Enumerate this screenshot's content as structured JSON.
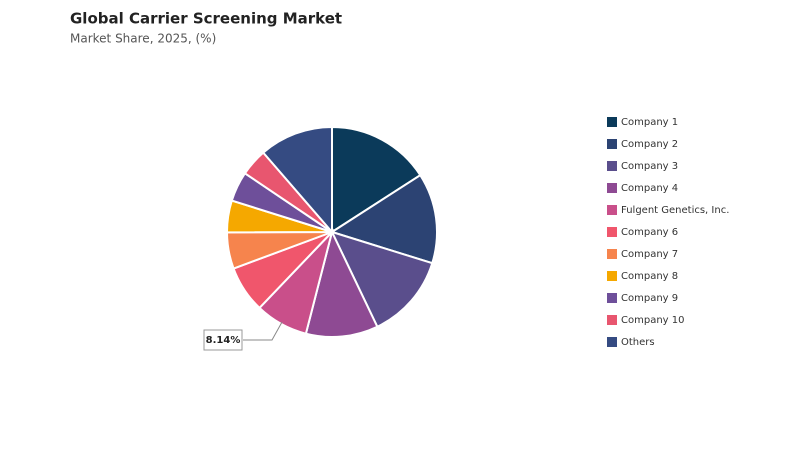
{
  "chart_data": {
    "type": "pie",
    "title": "Global Carrier Screening Market",
    "subtitle": "Market Share, 2025, (%)",
    "categories": [
      "Company 1",
      "Company 2",
      "Company 3",
      "Company 4",
      "Fulgent Genetics, Inc.",
      "Company 6",
      "Company 7",
      "Company 8",
      "Company 9",
      "Company 10",
      "Others"
    ],
    "values": [
      15.9,
      13.9,
      13.1,
      11.1,
      8.14,
      7.2,
      5.6,
      4.9,
      4.6,
      4.2,
      11.36
    ],
    "value_labels": [
      null,
      null,
      null,
      null,
      "8.14%",
      null,
      null,
      null,
      null,
      null,
      null
    ],
    "colors": [
      "#0b3a5a",
      "#2c4373",
      "#5a4e8c",
      "#8e4a93",
      "#c94f8a",
      "#f0566c",
      "#f6844d",
      "#f5a800",
      "#6e4f9a",
      "#e8566f",
      "#354b82"
    ],
    "legend": "right"
  }
}
